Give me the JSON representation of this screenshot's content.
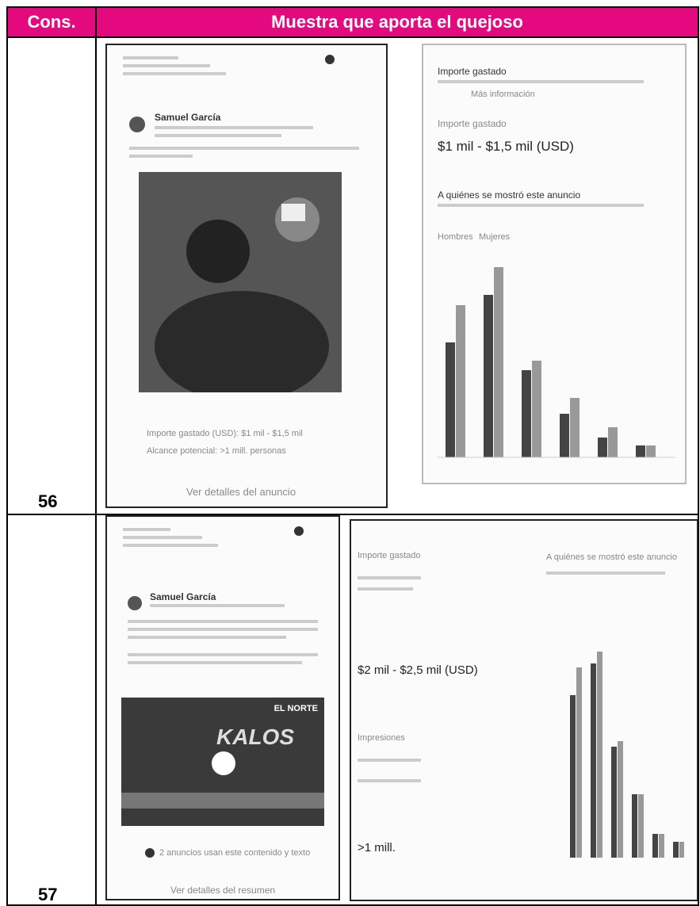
{
  "header": {
    "col1": "Cons.",
    "col2": "Muestra que aporta el quejoso"
  },
  "rows": [
    {
      "number": "56",
      "post": {
        "author": "Samuel García",
        "spend": "Importe gastado (USD): $1 mil - $1,5 mil",
        "reach": "Alcance potencial: >1 mill. personas",
        "link": "Ver detalles del anuncio"
      },
      "stats": {
        "title": "Importe gastado",
        "more": "Más información",
        "spend_label": "Importe gastado",
        "spend": "$1 mil - $1,5 mil (USD)",
        "audience": "A quiénes se mostró este anuncio",
        "tabs": [
          "Hombres",
          "Mujeres"
        ]
      }
    },
    {
      "number": "57",
      "post": {
        "author": "Samuel García",
        "banner": "EL NORTE",
        "sign": "KALOS",
        "shared": "2 anuncios usan este contenido y texto",
        "link": "Ver detalles del resumen"
      },
      "stats": {
        "spend_label": "Importe gastado",
        "spend": "$2 mil - $2,5 mil (USD)",
        "impressions": "Impresiones",
        "reach": ">1 mill.",
        "audience": "A quiénes se mostró este anuncio"
      }
    }
  ]
}
